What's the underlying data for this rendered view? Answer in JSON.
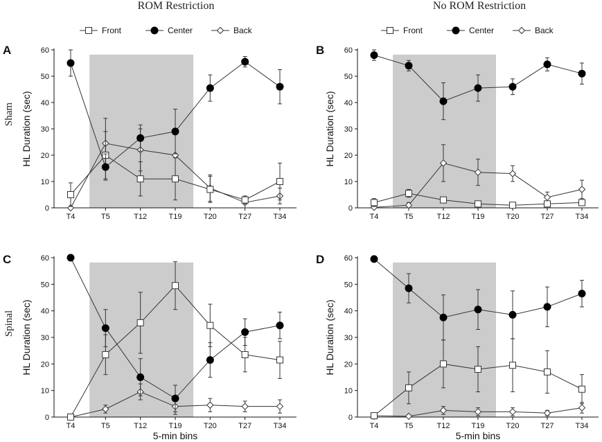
{
  "figure": {
    "column_titles": [
      "ROM Restriction",
      "No ROM Restriction"
    ],
    "row_labels": [
      "Sham",
      "Spinal"
    ],
    "ylabel": "HL Duration (sec)",
    "xlabel": "5-min bins"
  },
  "legend": [
    {
      "name": "Front",
      "marker": "open-square"
    },
    {
      "name": "Center",
      "marker": "filled-circle"
    },
    {
      "name": "Back",
      "marker": "open-diamond"
    }
  ],
  "colors": {
    "line": "#333333",
    "shade": "#cccccc",
    "axis": "#111111"
  },
  "chart_data": [
    {
      "panel": "A",
      "column": "ROM Restriction",
      "row": "Sham",
      "type": "line",
      "categories": [
        "T4",
        "T5",
        "T12",
        "T19",
        "T20",
        "T27",
        "T34"
      ],
      "ylim": [
        0,
        60
      ],
      "yticks": [
        0,
        10,
        20,
        30,
        40,
        50,
        60
      ],
      "shaded_range": [
        "T5",
        "T19"
      ],
      "series": [
        {
          "name": "Front",
          "values": [
            5,
            20,
            11,
            11,
            7,
            3,
            10
          ],
          "errors": [
            4.5,
            9,
            6.5,
            8,
            5,
            1.5,
            7
          ]
        },
        {
          "name": "Center",
          "values": [
            55,
            15.5,
            26.5,
            29,
            45.5,
            55.5,
            46
          ],
          "errors": [
            5,
            5,
            5,
            8.5,
            5,
            2,
            6.5
          ]
        },
        {
          "name": "Back",
          "values": [
            0,
            24.5,
            22,
            20,
            7.5,
            2,
            4.5
          ],
          "errors": [
            0.5,
            9.5,
            8,
            9,
            5,
            2,
            3
          ]
        }
      ]
    },
    {
      "panel": "B",
      "column": "No ROM Restriction",
      "row": "Sham",
      "type": "line",
      "categories": [
        "T4",
        "T5",
        "T12",
        "T19",
        "T20",
        "T27",
        "T34"
      ],
      "ylim": [
        0,
        60
      ],
      "yticks": [
        0,
        10,
        20,
        30,
        40,
        50,
        60
      ],
      "shaded_range": [
        "T5",
        "T19"
      ],
      "series": [
        {
          "name": "Front",
          "values": [
            2,
            5.5,
            3,
            1.5,
            1,
            1.5,
            2
          ],
          "errors": [
            1.5,
            1.5,
            0.8,
            0.6,
            0.5,
            0.5,
            1
          ]
        },
        {
          "name": "Center",
          "values": [
            58,
            54,
            40.5,
            45.5,
            46,
            54.5,
            51
          ],
          "errors": [
            2,
            2,
            7,
            5,
            3,
            2.5,
            4
          ]
        },
        {
          "name": "Back",
          "values": [
            0.2,
            1,
            17,
            13.5,
            13,
            4,
            7
          ],
          "errors": [
            0.3,
            1,
            7,
            5,
            3,
            2,
            3.5
          ]
        }
      ]
    },
    {
      "panel": "C",
      "column": "ROM Restriction",
      "row": "Spinal",
      "type": "line",
      "categories": [
        "T4",
        "T5",
        "T12",
        "T19",
        "T20",
        "T27",
        "T34"
      ],
      "ylim": [
        0,
        60
      ],
      "yticks": [
        0,
        10,
        20,
        30,
        40,
        50,
        60
      ],
      "shaded_range": [
        "T5",
        "T19"
      ],
      "series": [
        {
          "name": "Front",
          "values": [
            0,
            23.5,
            35.5,
            49.5,
            34.5,
            23.5,
            21.5
          ],
          "errors": [
            0.5,
            7.5,
            11.5,
            9,
            8,
            6.5,
            7
          ]
        },
        {
          "name": "Center",
          "values": [
            60,
            33.5,
            15,
            7,
            21.5,
            32,
            34.5
          ],
          "errors": [
            0,
            7,
            7,
            5,
            6.5,
            5,
            5
          ]
        },
        {
          "name": "Back",
          "values": [
            0,
            3,
            9.5,
            4,
            4.5,
            4,
            4
          ],
          "errors": [
            0.3,
            1.5,
            3,
            3,
            2.5,
            2,
            2.5
          ]
        }
      ]
    },
    {
      "panel": "D",
      "column": "No ROM Restriction",
      "row": "Spinal",
      "type": "line",
      "categories": [
        "T4",
        "T5",
        "T12",
        "T19",
        "T20",
        "T27",
        "T34"
      ],
      "ylim": [
        0,
        60
      ],
      "yticks": [
        0,
        10,
        20,
        30,
        40,
        50,
        60
      ],
      "shaded_range": [
        "T5",
        "T19"
      ],
      "series": [
        {
          "name": "Front",
          "values": [
            0.5,
            11,
            20,
            18,
            19.5,
            17,
            10.5
          ],
          "errors": [
            0.5,
            6,
            9,
            8.5,
            10,
            8,
            5.5
          ]
        },
        {
          "name": "Center",
          "values": [
            59.5,
            48.5,
            37.5,
            40.5,
            38.5,
            41.5,
            46.5
          ],
          "errors": [
            0.5,
            5.5,
            8.5,
            7.5,
            9,
            7.5,
            5
          ]
        },
        {
          "name": "Back",
          "values": [
            0.5,
            0.3,
            2.5,
            2,
            2,
            1.5,
            3.5
          ],
          "errors": [
            0.5,
            0.3,
            1.5,
            1.5,
            1.5,
            1,
            2
          ]
        }
      ]
    }
  ]
}
